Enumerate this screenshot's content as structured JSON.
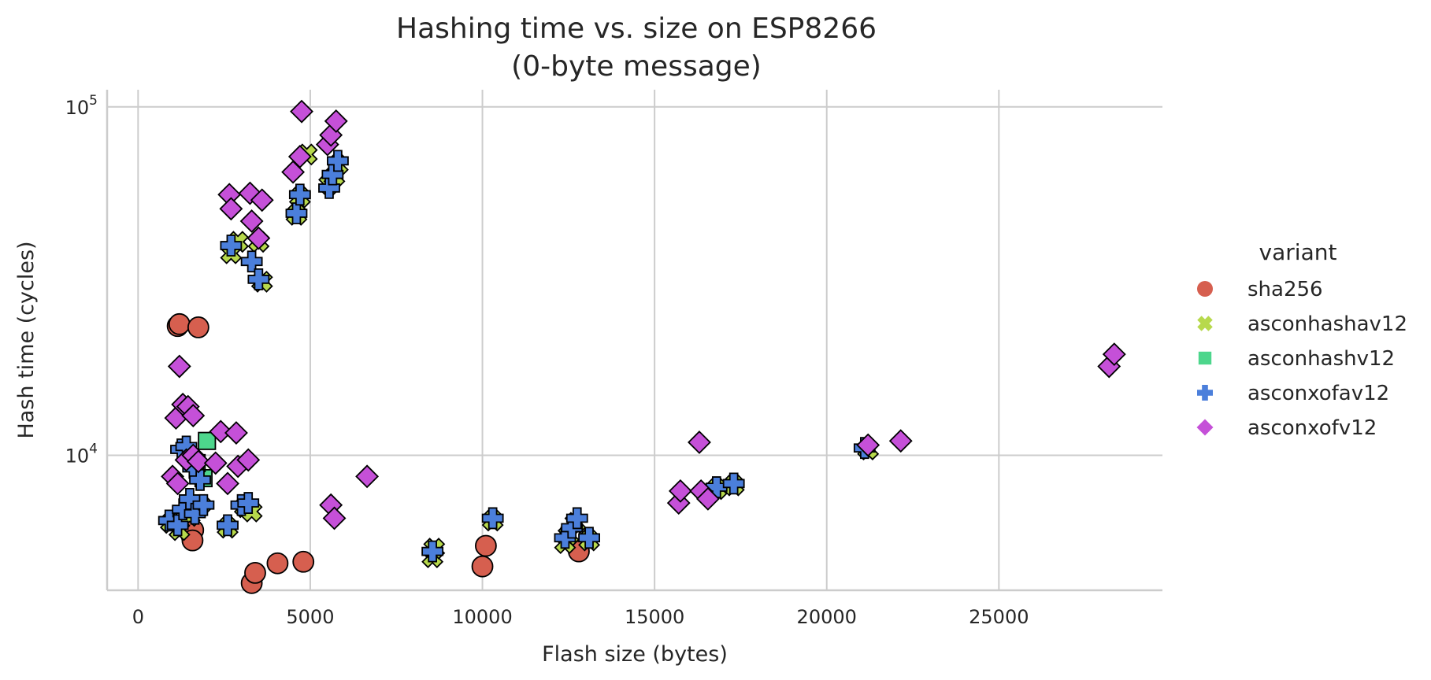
{
  "chart_data": {
    "type": "scatter",
    "title_line1": "Hashing time vs. size on ESP8266",
    "title_line2": "(0-byte message)",
    "xlabel": "Flash size (bytes)",
    "ylabel": "Hash time (cycles)",
    "xlim": [
      -900,
      29750
    ],
    "ylim": [
      4100,
      112000
    ],
    "yscale": "log",
    "grid": true,
    "x_ticks": [
      {
        "value": 0,
        "label": "0"
      },
      {
        "value": 5000,
        "label": "5000"
      },
      {
        "value": 10000,
        "label": "10000"
      },
      {
        "value": 15000,
        "label": "15000"
      },
      {
        "value": 20000,
        "label": "20000"
      },
      {
        "value": 25000,
        "label": "25000"
      }
    ],
    "y_ticks": [
      {
        "value": 10000,
        "base": "10",
        "exp": "4"
      },
      {
        "value": 100000,
        "base": "10",
        "exp": "5"
      }
    ],
    "legend": {
      "title": "variant",
      "placement": "right"
    },
    "series": [
      {
        "name": "sha256",
        "marker": "circle",
        "color": "#d65f4f",
        "points": [
          [
            1150,
            23500
          ],
          [
            1200,
            23800
          ],
          [
            1750,
            23300
          ],
          [
            1550,
            5900
          ],
          [
            1600,
            6100
          ],
          [
            1580,
            5700
          ],
          [
            3300,
            4300
          ],
          [
            3400,
            4600
          ],
          [
            4050,
            4900
          ],
          [
            4800,
            4950
          ],
          [
            10000,
            4800
          ],
          [
            10100,
            5500
          ],
          [
            12800,
            5300
          ]
        ]
      },
      {
        "name": "asconhashav12",
        "marker": "x",
        "color": "#b7d94c",
        "points": [
          [
            950,
            6400
          ],
          [
            1200,
            6100
          ],
          [
            1500,
            6700
          ],
          [
            1800,
            7200
          ],
          [
            2600,
            6200
          ],
          [
            3100,
            7100
          ],
          [
            3300,
            6900
          ],
          [
            2700,
            38000
          ],
          [
            2900,
            41000
          ],
          [
            3500,
            41000
          ],
          [
            3600,
            31500
          ],
          [
            4600,
            49000
          ],
          [
            4700,
            55000
          ],
          [
            4900,
            73000
          ],
          [
            5550,
            60000
          ],
          [
            5700,
            63000
          ],
          [
            5800,
            68000
          ],
          [
            8550,
            5100
          ],
          [
            8600,
            5400
          ],
          [
            10300,
            6500
          ],
          [
            12400,
            5600
          ],
          [
            12500,
            5900
          ],
          [
            12700,
            6400
          ],
          [
            13100,
            5700
          ],
          [
            16800,
            8000
          ],
          [
            17300,
            8200
          ],
          [
            21200,
            10400
          ]
        ]
      },
      {
        "name": "asconhashv12",
        "marker": "square",
        "color": "#4dd68c",
        "points": [
          [
            2000,
            11000
          ],
          [
            1900,
            8600
          ],
          [
            1700,
            9500
          ]
        ]
      },
      {
        "name": "asconxofav12",
        "marker": "plus",
        "color": "#4b7fdb",
        "points": [
          [
            900,
            6500
          ],
          [
            1150,
            6300
          ],
          [
            1300,
            7000
          ],
          [
            1500,
            7500
          ],
          [
            1650,
            6800
          ],
          [
            1900,
            7200
          ],
          [
            1250,
            10400
          ],
          [
            1400,
            10600
          ],
          [
            1600,
            9200
          ],
          [
            1800,
            8500
          ],
          [
            2600,
            6300
          ],
          [
            3000,
            7200
          ],
          [
            3200,
            7300
          ],
          [
            2700,
            40000
          ],
          [
            3300,
            36000
          ],
          [
            3500,
            32000
          ],
          [
            4600,
            49500
          ],
          [
            4700,
            56000
          ],
          [
            5550,
            58500
          ],
          [
            5650,
            64000
          ],
          [
            5800,
            70000
          ],
          [
            8550,
            5300
          ],
          [
            10300,
            6600
          ],
          [
            12400,
            5800
          ],
          [
            12600,
            6200
          ],
          [
            12750,
            6600
          ],
          [
            13100,
            5800
          ],
          [
            16800,
            8100
          ],
          [
            17300,
            8300
          ],
          [
            21100,
            10500
          ]
        ]
      },
      {
        "name": "asconxofv12",
        "marker": "diamond",
        "color": "#c550d8",
        "points": [
          [
            1200,
            18000
          ],
          [
            1100,
            12800
          ],
          [
            1300,
            14000
          ],
          [
            1450,
            13800
          ],
          [
            1600,
            13000
          ],
          [
            1000,
            8700
          ],
          [
            1150,
            8300
          ],
          [
            1400,
            9700
          ],
          [
            1600,
            10000
          ],
          [
            1750,
            9600
          ],
          [
            2250,
            9500
          ],
          [
            2400,
            11700
          ],
          [
            2600,
            8300
          ],
          [
            2850,
            11600
          ],
          [
            2900,
            9300
          ],
          [
            3200,
            9700
          ],
          [
            2650,
            56000
          ],
          [
            2700,
            51000
          ],
          [
            3250,
            56500
          ],
          [
            3300,
            47000
          ],
          [
            3500,
            42000
          ],
          [
            3600,
            54000
          ],
          [
            4500,
            65000
          ],
          [
            4700,
            72000
          ],
          [
            4750,
            97000
          ],
          [
            5500,
            78000
          ],
          [
            5600,
            83000
          ],
          [
            5750,
            91000
          ],
          [
            5600,
            7200
          ],
          [
            5700,
            6600
          ],
          [
            6650,
            8700
          ],
          [
            15700,
            7300
          ],
          [
            15750,
            7900
          ],
          [
            16300,
            10900
          ],
          [
            16350,
            7900
          ],
          [
            16550,
            7500
          ],
          [
            21200,
            10700
          ],
          [
            22150,
            11000
          ],
          [
            28200,
            18000
          ],
          [
            28350,
            19500
          ]
        ]
      }
    ]
  }
}
